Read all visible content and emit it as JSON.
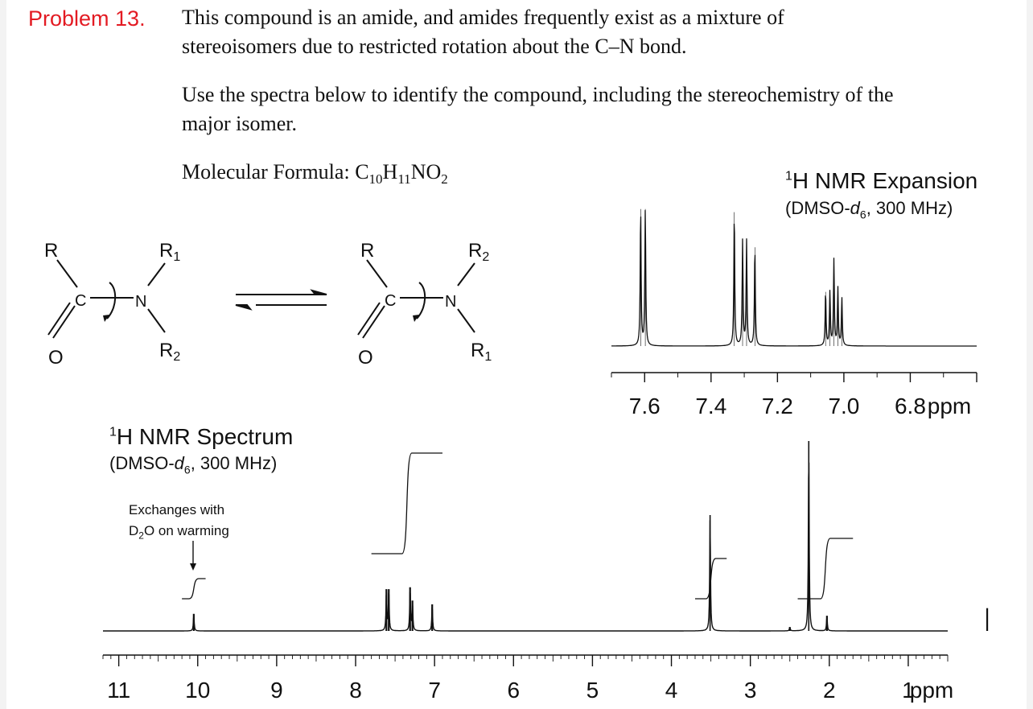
{
  "problem": {
    "label": "Problem 13.",
    "statement_line1": "This compound is an amide, and amides frequently exist as a mixture of",
    "statement_line2": "stereoisomers due to restricted rotation about the C–N bond.",
    "question_line1": "Use the spectra below to identify the compound, including the stereochemistry of the",
    "question_line2": "major isomer.",
    "formula_label": "Molecular Formula: ",
    "formula": {
      "c": "C",
      "c_n": "10",
      "h": "H",
      "h_n": "11",
      "rest": "NO",
      "o_n": "2"
    }
  },
  "equilibrium": {
    "left": {
      "r": "R",
      "r1": "R",
      "r1_sub": "1",
      "r2": "R",
      "r2_sub": "2",
      "c": "C",
      "n": "N",
      "o": "O"
    },
    "right": {
      "r": "R",
      "r2": "R",
      "r2_sub": "2",
      "r1": "R",
      "r1_sub": "1",
      "c": "C",
      "n": "N",
      "o": "O"
    }
  },
  "expansion": {
    "sup": "1",
    "title": "H NMR Expansion",
    "solvent_pre": "(DMSO-",
    "solvent_d": "d",
    "solvent_sub": "6",
    "solvent_post": ", 300 MHz)",
    "ticks": [
      "7.6",
      "7.4",
      "7.2",
      "7.0",
      "6.8"
    ],
    "unit": "ppm"
  },
  "spectrum": {
    "sup": "1",
    "title": "H NMR Spectrum",
    "solvent_pre": "(DMSO-",
    "solvent_d": "d",
    "solvent_sub": "6",
    "solvent_post": ", 300 MHz)",
    "annotation_line1": "Exchanges with",
    "annotation_line2_a": "D",
    "annotation_line2_sub": "2",
    "annotation_line2_b": "O on warming",
    "ticks": [
      "11",
      "10",
      "9",
      "8",
      "7",
      "6",
      "5",
      "4",
      "3",
      "2",
      "1"
    ],
    "unit": "ppm"
  },
  "chart_data": [
    {
      "type": "line",
      "title": "1H NMR Expansion (DMSO-d6, 300 MHz)",
      "xlabel": "ppm",
      "x_reversed": true,
      "xlim": [
        7.7,
        6.6
      ],
      "peaks": [
        {
          "ppm": 7.612,
          "height": 0.86
        },
        {
          "ppm": 7.598,
          "height": 0.86
        },
        {
          "ppm": 7.33,
          "height": 0.84
        },
        {
          "ppm": 7.305,
          "height": 0.66
        },
        {
          "ppm": 7.293,
          "height": 0.66
        },
        {
          "ppm": 7.268,
          "height": 0.62
        },
        {
          "ppm": 7.055,
          "height": 0.34
        },
        {
          "ppm": 7.042,
          "height": 0.34
        },
        {
          "ppm": 7.03,
          "height": 0.54
        },
        {
          "ppm": 7.018,
          "height": 0.36
        },
        {
          "ppm": 7.006,
          "height": 0.3
        }
      ]
    },
    {
      "type": "line",
      "title": "1H NMR Spectrum (DMSO-d6, 300 MHz)",
      "xlabel": "ppm",
      "x_reversed": true,
      "xlim": [
        11.2,
        0.5
      ],
      "peaks": [
        {
          "ppm": 10.05,
          "height": 0.09
        },
        {
          "ppm": 7.61,
          "height": 0.22
        },
        {
          "ppm": 7.58,
          "height": 0.22
        },
        {
          "ppm": 7.31,
          "height": 0.23
        },
        {
          "ppm": 7.28,
          "height": 0.16
        },
        {
          "ppm": 7.03,
          "height": 0.14
        },
        {
          "ppm": 3.51,
          "height": 0.61
        },
        {
          "ppm": 2.5,
          "height": 0.02
        },
        {
          "ppm": 2.26,
          "height": 1.0
        },
        {
          "ppm": 2.03,
          "height": 0.08
        },
        {
          "ppm": 0.0,
          "height": 0.12
        }
      ],
      "integrals": [
        {
          "from": 10.2,
          "to": 9.9,
          "value": 1
        },
        {
          "from": 7.8,
          "to": 6.9,
          "value": 5
        },
        {
          "from": 3.7,
          "to": 3.3,
          "value": 2
        },
        {
          "from": 2.4,
          "to": 1.7,
          "value": 3
        }
      ]
    }
  ]
}
